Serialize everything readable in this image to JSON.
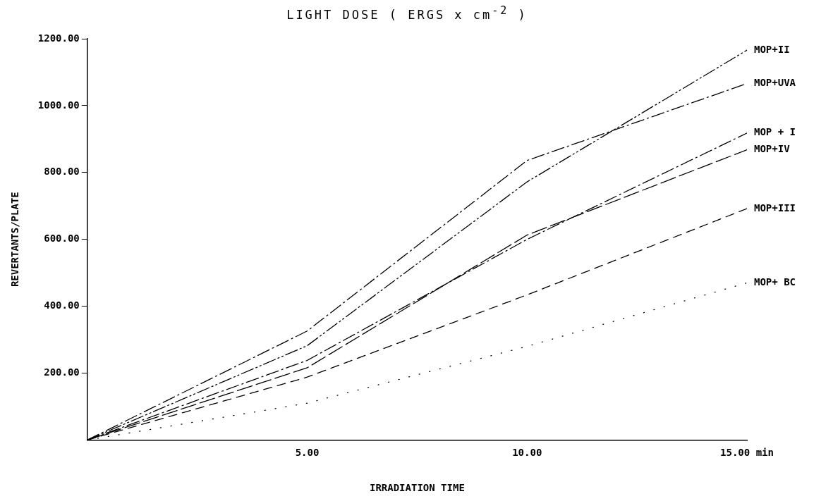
{
  "chart_data": {
    "type": "line",
    "title": "LIGHT DOSE ( ERGS x cm$^{-2}$ )",
    "xlabel": "IRRADIATION TIME",
    "ylabel": "REVERTANTS/PLATE",
    "x": [
      0,
      5,
      10,
      15
    ],
    "series": [
      {
        "name": "MOP+II",
        "color": "#000000",
        "line_style": "dashdotdot",
        "values": [
          0,
          282,
          772,
          1166
        ]
      },
      {
        "name": "MOP+UVA",
        "color": "#000000",
        "line_style": "dashdot",
        "values": [
          0,
          326,
          836,
          1066
        ]
      },
      {
        "name": "MOP + I",
        "color": "#000000",
        "line_style": "dashdot",
        "values": [
          0,
          238,
          600,
          918
        ]
      },
      {
        "name": "MOP+IV",
        "color": "#000000",
        "line_style": "longdash",
        "values": [
          0,
          216,
          613,
          868
        ]
      },
      {
        "name": "MOP+III",
        "color": "#000000",
        "line_style": "dashed",
        "values": [
          0,
          188,
          434,
          692
        ]
      },
      {
        "name": "MOP+ BC",
        "color": "#000000",
        "line_style": "dotted",
        "values": [
          0,
          110,
          280,
          470
        ]
      }
    ],
    "xlim": [
      0,
      15
    ],
    "xticks": [
      {
        "value": 5,
        "label": "5.00"
      },
      {
        "value": 10,
        "label": "10.00"
      },
      {
        "value": 15,
        "label": "15.00 min"
      }
    ],
    "ylim": [
      0,
      1200
    ],
    "yticks": [
      {
        "value": 200,
        "label": "200.00"
      },
      {
        "value": 400,
        "label": "400.00"
      },
      {
        "value": 600,
        "label": "600.00"
      },
      {
        "value": 800,
        "label": "800.00"
      },
      {
        "value": 1000,
        "label": "1000.00"
      },
      {
        "value": 1200,
        "label": "1200.00"
      }
    ],
    "grid": false,
    "legend": false,
    "marker": "none"
  }
}
